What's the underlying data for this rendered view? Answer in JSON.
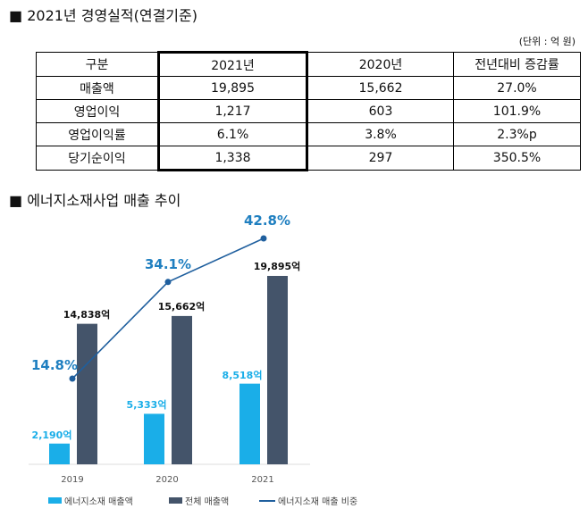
{
  "section1_title": "■ 2021년 경영실적(연결기준)",
  "unit_note": "(단위 : 억 원)",
  "table": {
    "headers": [
      "구분",
      "2021년",
      "2020년",
      "전년대비  증감률"
    ],
    "rows": [
      [
        "매출액",
        "19,895",
        "15,662",
        "27.0%"
      ],
      [
        "영업이익",
        "1,217",
        "603",
        "101.9%"
      ],
      [
        "영업이익률",
        "6.1%",
        "3.8%",
        "2.3%p"
      ],
      [
        "당기순이익",
        "1,338",
        "297",
        "350.5%"
      ]
    ]
  },
  "section2_title": "■ 에너지소재사업 매출 추이",
  "chart_data": {
    "type": "bar",
    "categories": [
      "2019",
      "2020",
      "2021"
    ],
    "series": [
      {
        "name": "에너지소재 매출액",
        "type": "bar",
        "values": [
          2190,
          5333,
          8518
        ],
        "labels": [
          "2,190억",
          "5,333억",
          "8,518억"
        ],
        "color": "#1aaee8"
      },
      {
        "name": "전체 매출액",
        "type": "bar",
        "values": [
          14838,
          15662,
          19895
        ],
        "labels": [
          "14,838억",
          "15,662억",
          "19,895억"
        ],
        "color": "#44546a"
      },
      {
        "name": "에너지소재 매출 비중",
        "type": "line",
        "values": [
          14.8,
          34.1,
          42.8
        ],
        "labels": [
          "14.8%",
          "34.1%",
          "42.8%"
        ],
        "color": "#1f5f9e"
      }
    ],
    "legend_position": "bottom",
    "grid": false
  }
}
